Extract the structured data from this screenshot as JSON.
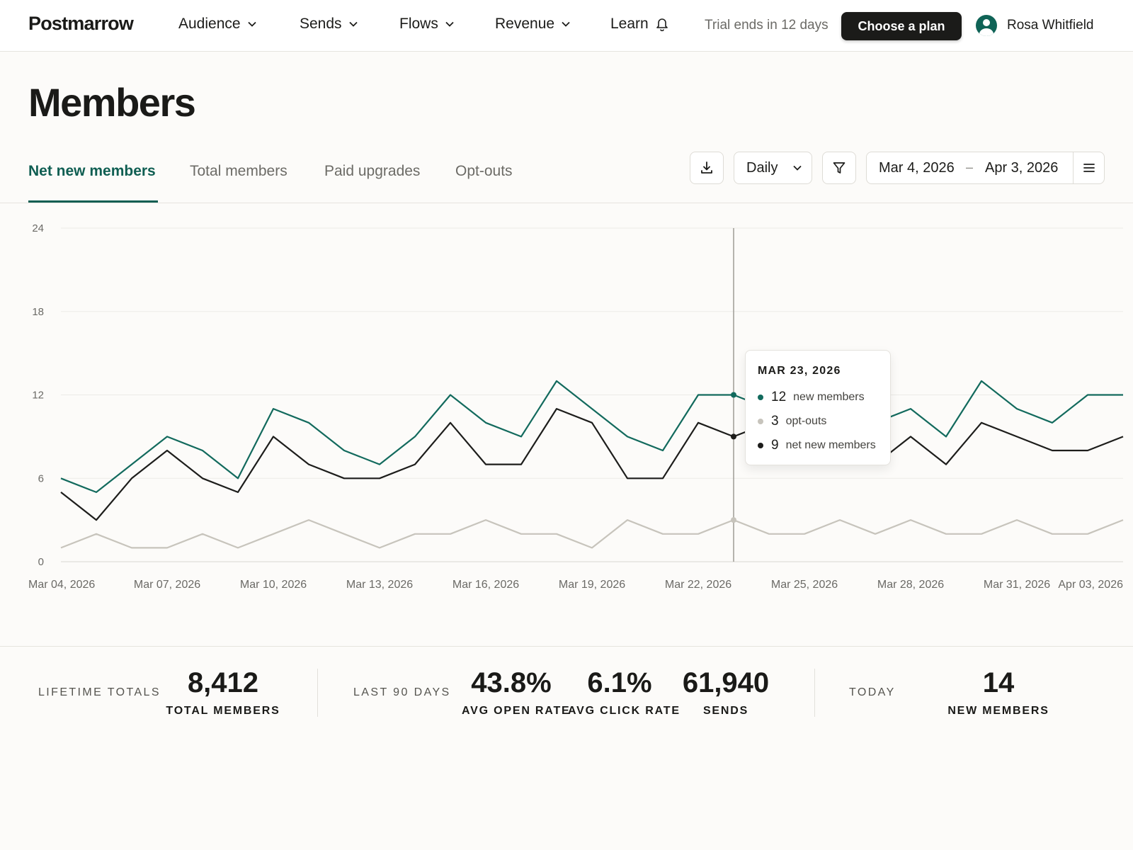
{
  "app": {
    "logo": "Postmarrow",
    "nav": [
      {
        "label": "Audience"
      },
      {
        "label": "Sends"
      },
      {
        "label": "Flows"
      },
      {
        "label": "Revenue"
      }
    ],
    "learn_label": "Learn",
    "trial_text": "Trial ends in 12 days",
    "plan_button": "Choose a plan",
    "user_name": "Rosa Whitfield"
  },
  "page": {
    "title": "Members",
    "tabs": [
      {
        "label": "Net new members",
        "active": true
      },
      {
        "label": "Total members",
        "active": false
      },
      {
        "label": "Paid upgrades",
        "active": false
      },
      {
        "label": "Opt-outs",
        "active": false
      }
    ],
    "controls": {
      "granularity": "Daily",
      "date_from": "Mar 4, 2026",
      "date_to": "Apr 3, 2026",
      "date_separator": "–"
    }
  },
  "chart_data": {
    "type": "line",
    "x": [
      "2026-03-04",
      "2026-03-05",
      "2026-03-06",
      "2026-03-07",
      "2026-03-08",
      "2026-03-09",
      "2026-03-10",
      "2026-03-11",
      "2026-03-12",
      "2026-03-13",
      "2026-03-14",
      "2026-03-15",
      "2026-03-16",
      "2026-03-17",
      "2026-03-18",
      "2026-03-19",
      "2026-03-20",
      "2026-03-21",
      "2026-03-22",
      "2026-03-23",
      "2026-03-24",
      "2026-03-25",
      "2026-03-26",
      "2026-03-27",
      "2026-03-28",
      "2026-03-29",
      "2026-03-30",
      "2026-03-31",
      "2026-04-01",
      "2026-04-02",
      "2026-04-03"
    ],
    "x_tick_labels": [
      "Mar 04, 2026",
      "Mar 07, 2026",
      "Mar 10, 2026",
      "Mar 13, 2026",
      "Mar 16, 2026",
      "Mar 19, 2026",
      "Mar 22, 2026",
      "Mar 25, 2026",
      "Mar 28, 2026",
      "Mar 31, 2026",
      "Apr 03, 2026"
    ],
    "y_ticks": [
      0,
      6,
      12,
      18,
      24
    ],
    "ylim": [
      0,
      24
    ],
    "grid": true,
    "series": [
      {
        "name": "new members",
        "color": "#126a5d",
        "values": [
          6,
          5,
          7,
          9,
          8,
          6,
          11,
          10,
          8,
          7,
          9,
          12,
          10,
          9,
          13,
          11,
          9,
          8,
          12,
          12,
          11,
          12,
          11,
          10,
          11,
          9,
          13,
          11,
          10,
          12,
          12
        ]
      },
      {
        "name": "net new members",
        "color": "#1d1d1b",
        "values": [
          5,
          3,
          6,
          8,
          6,
          5,
          9,
          7,
          6,
          6,
          7,
          10,
          7,
          7,
          11,
          10,
          6,
          6,
          10,
          9,
          10,
          9,
          9,
          7,
          9,
          7,
          10,
          9,
          8,
          8,
          9
        ]
      },
      {
        "name": "opt-outs",
        "color": "#c7c4bc",
        "values": [
          1,
          2,
          1,
          1,
          2,
          1,
          2,
          3,
          2,
          1,
          2,
          2,
          3,
          2,
          2,
          1,
          3,
          2,
          2,
          3,
          2,
          2,
          3,
          2,
          3,
          2,
          2,
          3,
          2,
          2,
          3
        ]
      }
    ],
    "hover": {
      "date": "MAR 23, 2026",
      "index": 19,
      "items": [
        {
          "value": "12",
          "label": "new members",
          "color": "#126a5d"
        },
        {
          "value": "3",
          "label": "opt-outs",
          "color": "#c7c4bc"
        },
        {
          "value": "9",
          "label": "net new members",
          "color": "#1d1d1b"
        }
      ]
    }
  },
  "stats": {
    "lifetime_label": "LIFETIME TOTALS",
    "total_members_value": "8,412",
    "total_members_label": "TOTAL MEMBERS",
    "last90_label": "LAST 90 DAYS",
    "open_rate_value": "43.8%",
    "open_rate_label": "AVG OPEN RATE",
    "click_rate_value": "6.1%",
    "click_rate_label": "AVG CLICK RATE",
    "sends_value": "61,940",
    "sends_label": "SENDS",
    "today_label": "TODAY",
    "new_members_value": "14",
    "new_members_label": "NEW MEMBERS"
  }
}
